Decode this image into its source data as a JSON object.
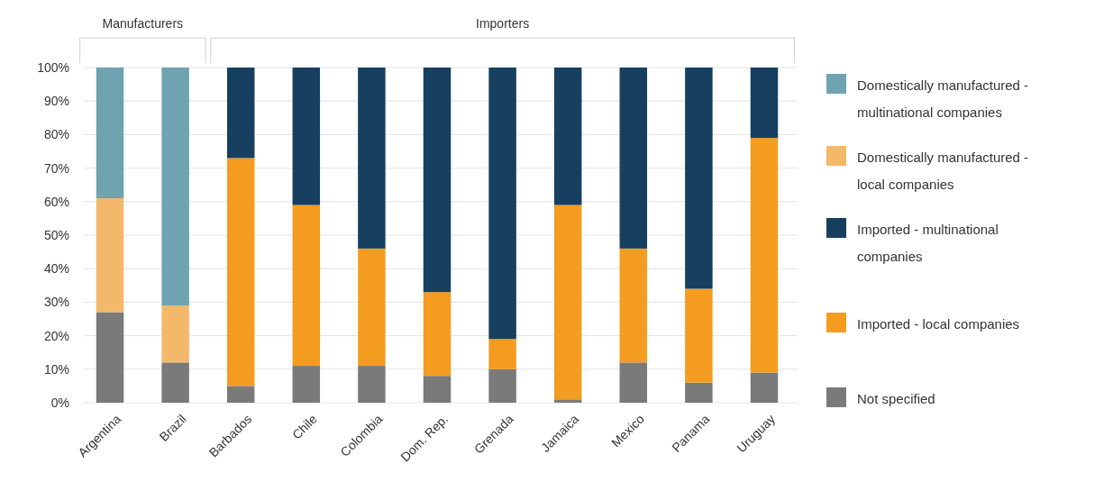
{
  "chart_data": {
    "type": "bar",
    "stacked": true,
    "categories": [
      "Argentina",
      "Brazil",
      "Barbados",
      "Chile",
      "Colombia",
      "Dom. Rep.",
      "Grenada",
      "Jamaica",
      "Mexico",
      "Panama",
      "Uruguay"
    ],
    "series": [
      {
        "name": "Not specified",
        "color": "#7a7a7a",
        "values": [
          27,
          12,
          5,
          11,
          11,
          8,
          10,
          1,
          12,
          6,
          9
        ]
      },
      {
        "name": "Imported - local companies",
        "color": "#f39c1f",
        "values": [
          0,
          0,
          68,
          48,
          35,
          25,
          9,
          58,
          34,
          28,
          70
        ]
      },
      {
        "name": "Imported - multinational companies",
        "color": "#173f5f",
        "values": [
          0,
          0,
          27,
          41,
          54,
          67,
          81,
          41,
          54,
          66,
          21
        ]
      },
      {
        "name": "Domestically manufactured - local companies",
        "color": "#f4b86a",
        "values": [
          34,
          17,
          0,
          0,
          0,
          0,
          0,
          0,
          0,
          0,
          0
        ]
      },
      {
        "name": "Domestically manufactured - multinational companies",
        "color": "#6fa3b0",
        "values": [
          39,
          71,
          0,
          0,
          0,
          0,
          0,
          0,
          0,
          0,
          0
        ]
      }
    ],
    "ylim": [
      0,
      100
    ],
    "yticks": [
      {
        "value": 0,
        "label": "0%"
      },
      {
        "value": 10,
        "label": "10%"
      },
      {
        "value": 20,
        "label": "20%"
      },
      {
        "value": 30,
        "label": "30%"
      },
      {
        "value": 40,
        "label": "40%"
      },
      {
        "value": 50,
        "label": "50%"
      },
      {
        "value": 60,
        "label": "60%"
      },
      {
        "value": 70,
        "label": "70%"
      },
      {
        "value": 80,
        "label": "80%"
      },
      {
        "value": 90,
        "label": "90%"
      },
      {
        "value": 100,
        "label": "100%"
      }
    ],
    "grid": "y",
    "legend": "right",
    "annotations": [
      "Manufacturers",
      "Importers"
    ]
  }
}
